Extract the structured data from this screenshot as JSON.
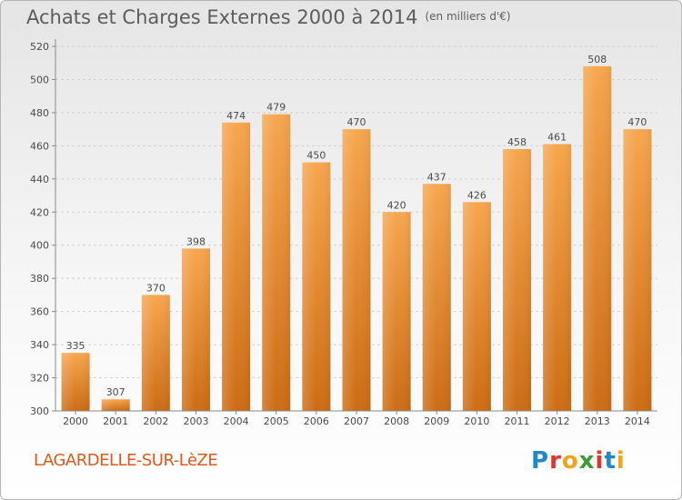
{
  "header": {
    "title": "Achats et Charges Externes 2000 à 2014",
    "subtitle": "(en milliers d'€)"
  },
  "footer": {
    "commune": "LAGARDELLE-SUR-LèZE",
    "logo": "Proxiti"
  },
  "colors": {
    "bar_top": "#f7a64e",
    "bar_bottom": "#cc6c14",
    "axis": "#8a8a8a",
    "grid": "#d0d0d0",
    "text": "#4a4a4a"
  },
  "chart_data": {
    "type": "bar",
    "categories": [
      "2000",
      "2001",
      "2002",
      "2003",
      "2004",
      "2005",
      "2006",
      "2007",
      "2008",
      "2009",
      "2010",
      "2011",
      "2012",
      "2013",
      "2014"
    ],
    "values": [
      335,
      307,
      370,
      398,
      474,
      479,
      450,
      470,
      420,
      437,
      426,
      458,
      461,
      508,
      470
    ],
    "ylim": [
      300,
      520
    ],
    "yticks": [
      300,
      320,
      340,
      360,
      380,
      400,
      420,
      440,
      460,
      480,
      500,
      520
    ],
    "grid": true,
    "data_labels": true
  }
}
